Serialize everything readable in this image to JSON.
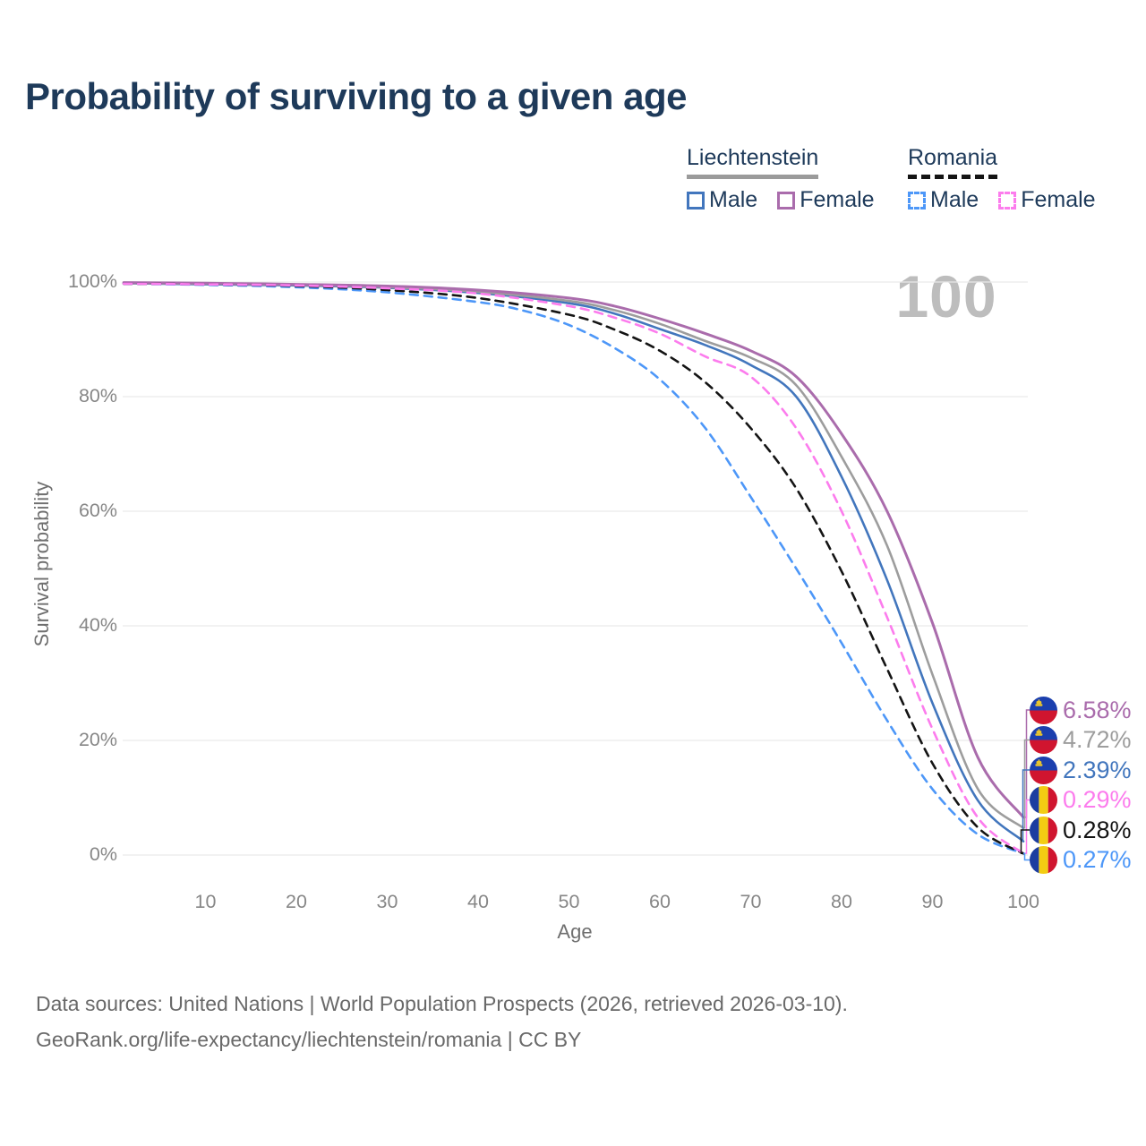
{
  "title": "Probability of surviving to a given age",
  "legend": {
    "groups": [
      {
        "name": "Liechtenstein",
        "line_style": "solid",
        "underline_color": "#9b9b9b",
        "items": [
          {
            "label": "Male",
            "color": "#4276bd",
            "style": "solid"
          },
          {
            "label": "Female",
            "color": "#aa6cac",
            "style": "solid"
          }
        ]
      },
      {
        "name": "Romania",
        "line_style": "dashed",
        "underline_color": "#141414",
        "items": [
          {
            "label": "Male",
            "color": "#4d97f8",
            "style": "dashed"
          },
          {
            "label": "Female",
            "color": "#fc7ced",
            "style": "dashed"
          }
        ]
      }
    ]
  },
  "watermark": "100",
  "chart_data": {
    "type": "line",
    "title": "Probability of surviving to a given age",
    "xlabel": "Age",
    "ylabel": "Survival probability",
    "xlim": [
      0,
      100
    ],
    "ylim": [
      0,
      100
    ],
    "grid": "horizontal",
    "legend_position": "top-right",
    "x_ticks": [
      {
        "label": "10",
        "value": 10
      },
      {
        "label": "20",
        "value": 20
      },
      {
        "label": "30",
        "value": 30
      },
      {
        "label": "40",
        "value": 40
      },
      {
        "label": "50",
        "value": 50
      },
      {
        "label": "60",
        "value": 60
      },
      {
        "label": "70",
        "value": 70
      },
      {
        "label": "80",
        "value": 80
      },
      {
        "label": "90",
        "value": 90
      },
      {
        "label": "100",
        "value": 100
      }
    ],
    "y_ticks": [
      {
        "label": "0%",
        "value": 0
      },
      {
        "label": "20%",
        "value": 20
      },
      {
        "label": "40%",
        "value": 40
      },
      {
        "label": "60%",
        "value": 60
      },
      {
        "label": "80%",
        "value": 80
      },
      {
        "label": "100%",
        "value": 100
      }
    ],
    "series": [
      {
        "name": "Liechtenstein Female",
        "country": "Liechtenstein",
        "group": "Female",
        "style": "solid",
        "color": "#aa6cac",
        "flag": "liechtenstein",
        "end_label": "6.58%",
        "end_value": 6.58,
        "points": [
          [
            1,
            99.9
          ],
          [
            10,
            99.8
          ],
          [
            20,
            99.6
          ],
          [
            30,
            99.3
          ],
          [
            40,
            98.6
          ],
          [
            50,
            97.2
          ],
          [
            55,
            95.8
          ],
          [
            60,
            93.6
          ],
          [
            65,
            91.0
          ],
          [
            70,
            88.0
          ],
          [
            75,
            83.5
          ],
          [
            80,
            73.5
          ],
          [
            85,
            60.0
          ],
          [
            90,
            40.5
          ],
          [
            95,
            17.0
          ],
          [
            100,
            6.58
          ]
        ]
      },
      {
        "name": "Liechtenstein (both sexes)",
        "country": "Liechtenstein",
        "group": "All",
        "style": "solid",
        "color": "#9d9d9d",
        "flag": "liechtenstein",
        "end_label": "4.72%",
        "end_value": 4.72,
        "points": [
          [
            1,
            99.8
          ],
          [
            10,
            99.7
          ],
          [
            20,
            99.5
          ],
          [
            30,
            99.1
          ],
          [
            40,
            98.3
          ],
          [
            50,
            96.7
          ],
          [
            55,
            95.1
          ],
          [
            60,
            92.7
          ],
          [
            65,
            89.7
          ],
          [
            70,
            86.8
          ],
          [
            75,
            82.0
          ],
          [
            80,
            69.5
          ],
          [
            85,
            54.0
          ],
          [
            90,
            31.5
          ],
          [
            95,
            11.5
          ],
          [
            100,
            4.72
          ]
        ]
      },
      {
        "name": "Liechtenstein Male",
        "country": "Liechtenstein",
        "group": "Male",
        "style": "solid",
        "color": "#4276bd",
        "flag": "liechtenstein",
        "end_label": "2.39%",
        "end_value": 2.39,
        "points": [
          [
            1,
            99.8
          ],
          [
            10,
            99.6
          ],
          [
            20,
            99.4
          ],
          [
            30,
            99.0
          ],
          [
            40,
            98.1
          ],
          [
            50,
            96.3
          ],
          [
            55,
            94.5
          ],
          [
            60,
            91.8
          ],
          [
            65,
            89.0
          ],
          [
            70,
            85.5
          ],
          [
            75,
            80.0
          ],
          [
            80,
            66.0
          ],
          [
            85,
            48.0
          ],
          [
            90,
            26.5
          ],
          [
            95,
            9.5
          ],
          [
            100,
            2.39
          ]
        ]
      },
      {
        "name": "Romania Female",
        "country": "Romania",
        "group": "Female",
        "style": "dashed",
        "color": "#fc7ced",
        "flag": "romania",
        "end_label": "0.29%",
        "end_value": 0.29,
        "points": [
          [
            1,
            99.7
          ],
          [
            10,
            99.6
          ],
          [
            20,
            99.4
          ],
          [
            30,
            98.9
          ],
          [
            40,
            98.0
          ],
          [
            50,
            95.8
          ],
          [
            55,
            93.8
          ],
          [
            60,
            91.0
          ],
          [
            65,
            87.0
          ],
          [
            70,
            83.5
          ],
          [
            75,
            74.5
          ],
          [
            80,
            60.0
          ],
          [
            85,
            41.5
          ],
          [
            90,
            22.0
          ],
          [
            95,
            6.5
          ],
          [
            100,
            0.29
          ]
        ]
      },
      {
        "name": "Romania (both sexes)",
        "country": "Romania",
        "group": "All",
        "style": "dashed",
        "color": "#141414",
        "flag": "romania",
        "end_label": "0.28%",
        "end_value": 0.28,
        "points": [
          [
            1,
            99.7
          ],
          [
            10,
            99.6
          ],
          [
            20,
            99.3
          ],
          [
            30,
            98.6
          ],
          [
            40,
            97.2
          ],
          [
            50,
            94.3
          ],
          [
            55,
            91.7
          ],
          [
            60,
            88.0
          ],
          [
            65,
            82.5
          ],
          [
            70,
            74.5
          ],
          [
            75,
            64.0
          ],
          [
            80,
            49.5
          ],
          [
            85,
            32.5
          ],
          [
            90,
            16.0
          ],
          [
            95,
            4.8
          ],
          [
            100,
            0.28
          ]
        ]
      },
      {
        "name": "Romania Male",
        "country": "Romania",
        "group": "Male",
        "style": "dashed",
        "color": "#4d97f8",
        "flag": "romania",
        "end_label": "0.27%",
        "end_value": 0.27,
        "points": [
          [
            1,
            99.7
          ],
          [
            10,
            99.5
          ],
          [
            20,
            99.1
          ],
          [
            30,
            98.2
          ],
          [
            40,
            96.5
          ],
          [
            45,
            95.0
          ],
          [
            50,
            92.5
          ],
          [
            55,
            88.5
          ],
          [
            60,
            83.0
          ],
          [
            65,
            74.5
          ],
          [
            70,
            62.5
          ],
          [
            75,
            50.0
          ],
          [
            80,
            37.0
          ],
          [
            85,
            23.5
          ],
          [
            90,
            11.5
          ],
          [
            95,
            3.6
          ],
          [
            100,
            0.27
          ]
        ]
      }
    ]
  },
  "footer": {
    "sources": "Data sources: United Nations | World Population Prospects (2026, retrieved 2026-03-10).",
    "attribution": "GeoRank.org/life-expectancy/liechtenstein/romania | CC BY"
  }
}
